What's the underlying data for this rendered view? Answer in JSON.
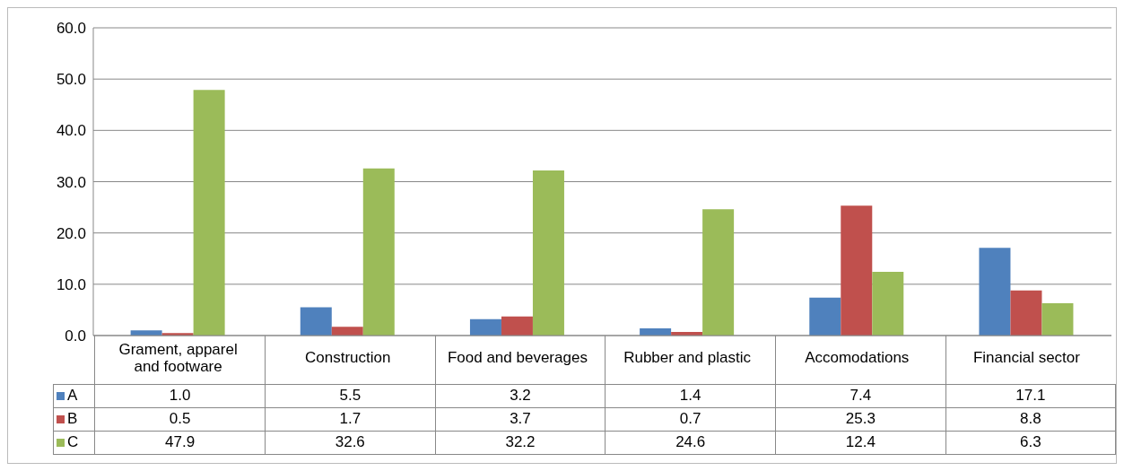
{
  "chart_data": {
    "type": "bar",
    "categories": [
      "Grament, apparel and footware",
      "Construction",
      "Food and beverages",
      "Rubber and plastic",
      "Accomodations",
      "Financial sector"
    ],
    "series": [
      {
        "name": "A",
        "color": "#4f81bd",
        "values": [
          1.0,
          5.5,
          3.2,
          1.4,
          7.4,
          17.1
        ],
        "value_labels": [
          "1.0",
          "5.5",
          "3.2",
          "1.4",
          "7.4",
          "17.1"
        ]
      },
      {
        "name": "B",
        "color": "#c0504d",
        "values": [
          0.5,
          1.7,
          3.7,
          0.7,
          25.3,
          8.8
        ],
        "value_labels": [
          "0.5",
          "1.7",
          "3.7",
          "0.7",
          "25.3",
          "8.8"
        ]
      },
      {
        "name": "C",
        "color": "#9bbb59",
        "values": [
          47.9,
          32.6,
          32.2,
          24.6,
          12.4,
          6.3
        ],
        "value_labels": [
          "47.9",
          "32.6",
          "32.2",
          "24.6",
          "12.4",
          "6.3"
        ]
      }
    ],
    "ylim": [
      0,
      60
    ],
    "yticks": [
      {
        "value": 0,
        "label": "0.0"
      },
      {
        "value": 10,
        "label": "10.0"
      },
      {
        "value": 20,
        "label": "20.0"
      },
      {
        "value": 30,
        "label": "30.0"
      },
      {
        "value": 40,
        "label": "40.0"
      },
      {
        "value": 50,
        "label": "50.0"
      },
      {
        "value": 60,
        "label": "60.0"
      }
    ],
    "grid": "y",
    "legend": "bottom"
  }
}
